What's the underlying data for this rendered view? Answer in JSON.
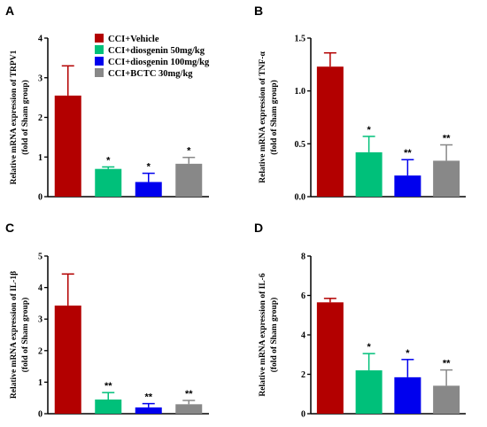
{
  "legend": [
    {
      "label": "CCI+Vehicle",
      "color": "#b30000"
    },
    {
      "label": "CCI+diosgenin 50mg/kg",
      "color": "#00c07a"
    },
    {
      "label": "CCI+diosgenin 100mg/kg",
      "color": "#0000ee"
    },
    {
      "label": "CCI+BCTC 30mg/kg",
      "color": "#888888"
    }
  ],
  "chart_data": [
    {
      "type": "bar",
      "panel": "A",
      "categories": [
        "CCI+Vehicle",
        "CCI+diosgenin 50mg/kg",
        "CCI+diosgenin 100mg/kg",
        "CCI+BCTC 30mg/kg"
      ],
      "values": [
        2.55,
        0.7,
        0.37,
        0.83
      ],
      "errors": [
        0.75,
        0.05,
        0.22,
        0.16
      ],
      "significance": [
        "",
        "*",
        "*",
        "*"
      ],
      "ylabel_line1": "Relative mRNA expression of TRPV1",
      "ylabel_line2": "(fold of Sham group)",
      "ylim": [
        0,
        4
      ],
      "yticks": [
        0,
        1,
        2,
        3,
        4
      ],
      "ytick_labels": [
        "0",
        "1",
        "2",
        "3",
        "4"
      ],
      "colors": [
        "#b30000",
        "#00c07a",
        "#0000ee",
        "#888888"
      ]
    },
    {
      "type": "bar",
      "panel": "B",
      "categories": [
        "CCI+Vehicle",
        "CCI+diosgenin 50mg/kg",
        "CCI+diosgenin 100mg/kg",
        "CCI+BCTC 30mg/kg"
      ],
      "values": [
        1.23,
        0.42,
        0.2,
        0.34
      ],
      "errors": [
        0.13,
        0.15,
        0.15,
        0.15
      ],
      "significance": [
        "",
        "*",
        "**",
        "**"
      ],
      "ylabel_line1": "Relative mRNA expression of TNF-α",
      "ylabel_line2": "(fold of Sham group)",
      "ylim": [
        0,
        1.5
      ],
      "yticks": [
        0,
        0.5,
        1.0,
        1.5
      ],
      "ytick_labels": [
        "0.0",
        "0.5",
        "1.0",
        "1.5"
      ],
      "colors": [
        "#b30000",
        "#00c07a",
        "#0000ee",
        "#888888"
      ]
    },
    {
      "type": "bar",
      "panel": "C",
      "categories": [
        "CCI+Vehicle",
        "CCI+diosgenin 50mg/kg",
        "CCI+diosgenin 100mg/kg",
        "CCI+BCTC 30mg/kg"
      ],
      "values": [
        3.43,
        0.45,
        0.2,
        0.3
      ],
      "errors": [
        1.0,
        0.22,
        0.12,
        0.12
      ],
      "significance": [
        "",
        "**",
        "**",
        "**"
      ],
      "ylabel_line1": "Relative mRNA expression of IL-1β",
      "ylabel_line2": "(fold of Sham group)",
      "ylim": [
        0,
        5
      ],
      "yticks": [
        0,
        1,
        2,
        3,
        4,
        5
      ],
      "ytick_labels": [
        "0",
        "1",
        "2",
        "3",
        "4",
        "5"
      ],
      "colors": [
        "#b30000",
        "#00c07a",
        "#0000ee",
        "#888888"
      ]
    },
    {
      "type": "bar",
      "panel": "D",
      "categories": [
        "CCI+Vehicle",
        "CCI+diosgenin 50mg/kg",
        "CCI+diosgenin 100mg/kg",
        "CCI+BCTC 30mg/kg"
      ],
      "values": [
        5.65,
        2.2,
        1.85,
        1.42
      ],
      "errors": [
        0.2,
        0.85,
        0.9,
        0.8
      ],
      "significance": [
        "",
        "*",
        "*",
        "**"
      ],
      "ylabel_line1": "Relative mRNA expression of IL-6",
      "ylabel_line2": "(fold of Sham group)",
      "ylim": [
        0,
        8
      ],
      "yticks": [
        0,
        2,
        4,
        6,
        8
      ],
      "ytick_labels": [
        "0",
        "2",
        "4",
        "6",
        "8"
      ],
      "colors": [
        "#b30000",
        "#00c07a",
        "#0000ee",
        "#888888"
      ]
    }
  ]
}
